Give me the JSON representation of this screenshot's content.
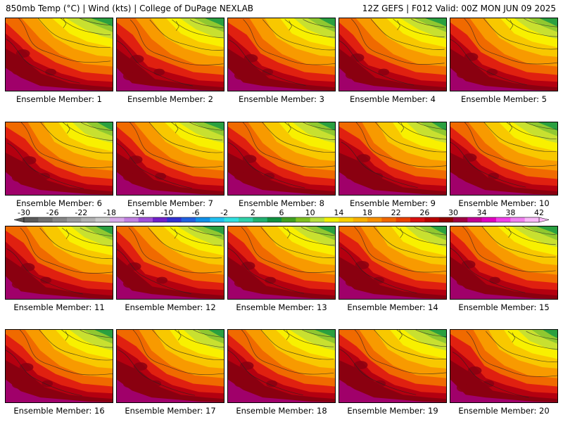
{
  "header": {
    "left": "850mb Temp (°C) | Wind (kts) | College of DuPage NEXLAB",
    "right": "12Z GEFS | F012 Valid: 00Z MON JUN 09 2025"
  },
  "panel_label_prefix": "Ensemble Member: ",
  "members": [
    1,
    2,
    3,
    4,
    5,
    6,
    7,
    8,
    9,
    10,
    11,
    12,
    13,
    14,
    15,
    16,
    17,
    18,
    19,
    20
  ],
  "colorbar": {
    "tick_labels": [
      "-30",
      "-26",
      "-22",
      "-18",
      "-14",
      "-10",
      "-6",
      "-2",
      "2",
      "6",
      "10",
      "14",
      "18",
      "22",
      "26",
      "30",
      "34",
      "38",
      "42"
    ],
    "colors": [
      "#5a5a5a",
      "#707070",
      "#868686",
      "#9c9c9c",
      "#b2b2b2",
      "#c8c8c8",
      "#d6a8e8",
      "#c080e0",
      "#a050d8",
      "#7020c8",
      "#3030d0",
      "#2060e0",
      "#1090e8",
      "#20c0f0",
      "#30e0e0",
      "#30d0a8",
      "#20b070",
      "#109040",
      "#40a020",
      "#80c020",
      "#b8e040",
      "#f0f000",
      "#f8d000",
      "#f8b000",
      "#f89000",
      "#f06800",
      "#e84000",
      "#d81010",
      "#b80000",
      "#900000",
      "#a00040",
      "#c00090",
      "#e000c0",
      "#f040e8",
      "#f080f0",
      "#f8b8f8"
    ]
  },
  "palette": {
    "dark_green": "#0a8a50",
    "green": "#2aa040",
    "light_green": "#90c830",
    "yellow_green": "#c8e030",
    "yellow": "#f8f000",
    "gold": "#f8c800",
    "orange": "#f89a00",
    "dark_orange": "#f06a00",
    "red": "#e02010",
    "dark_red": "#b40010",
    "maroon": "#8a0010",
    "magenta": "#a0006a"
  }
}
